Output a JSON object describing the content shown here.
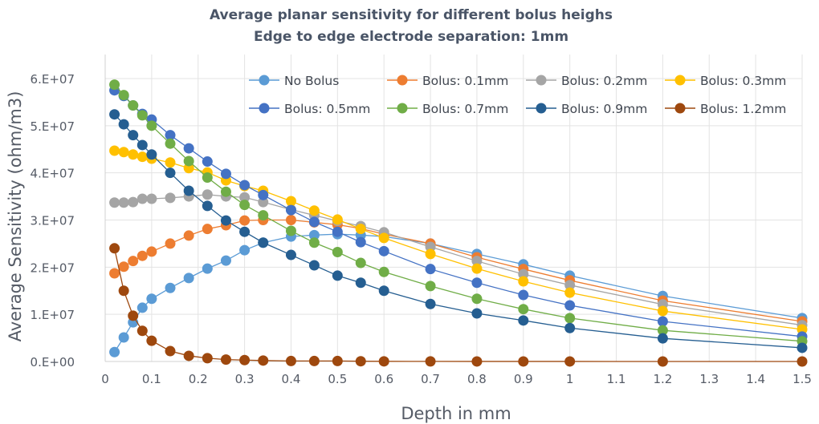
{
  "chart_data": {
    "type": "line",
    "title": "Average planar sensitivity for different bolus heighs",
    "subtitle": "Edge to edge electrode separation: 1mm",
    "xlabel": "Depth in mm",
    "ylabel": "Average Sensitivity (ohm/m3)",
    "xlim": [
      0,
      1.5
    ],
    "ylim": [
      0,
      60000000
    ],
    "grid": true,
    "legend_position": "top-right",
    "x_ticks": [
      0,
      0.1,
      0.2,
      0.3,
      0.4,
      0.5,
      0.6,
      0.7,
      0.8,
      0.9,
      1,
      1.1,
      1.2,
      1.3,
      1.4,
      1.5
    ],
    "x_tick_labels": [
      "0",
      "0.1",
      "0.2",
      "0.3",
      "0.4",
      "0.5",
      "0.6",
      "0.7",
      "0.8",
      "0.9",
      "1",
      "1.1",
      "1.2",
      "1.3",
      "1.4",
      "1.5"
    ],
    "y_ticks": [
      0,
      10000000,
      20000000,
      30000000,
      40000000,
      50000000,
      60000000
    ],
    "y_tick_labels": [
      "0.E+00",
      "1.E+07",
      "2.E+07",
      "3.E+07",
      "4.E+07",
      "5.E+07",
      "6.E+07"
    ],
    "x": [
      0.02,
      0.04,
      0.06,
      0.08,
      0.1,
      0.14,
      0.18,
      0.22,
      0.26,
      0.3,
      0.34,
      0.4,
      0.45,
      0.5,
      0.55,
      0.6,
      0.7,
      0.8,
      0.9,
      1,
      1.2,
      1.5
    ],
    "y_scale": 10000000,
    "series": [
      {
        "name": "No Bolus",
        "color": "#5B9BD5",
        "values": [
          0.2,
          0.51,
          0.83,
          1.14,
          1.33,
          1.56,
          1.77,
          1.97,
          2.14,
          2.36,
          2.52,
          2.65,
          2.68,
          2.7,
          2.68,
          2.65,
          2.5,
          2.28,
          2.06,
          1.82,
          1.39,
          0.92
        ]
      },
      {
        "name": "Bolus: 0.1mm",
        "color": "#ED7D31",
        "values": [
          1.87,
          2.01,
          2.13,
          2.24,
          2.33,
          2.5,
          2.67,
          2.81,
          2.89,
          2.99,
          3.0,
          3.0,
          2.95,
          2.9,
          2.82,
          2.7,
          2.5,
          2.21,
          1.96,
          1.72,
          1.29,
          0.85
        ]
      },
      {
        "name": "Bolus: 0.2mm",
        "color": "#A5A5A5",
        "values": [
          3.37,
          3.37,
          3.38,
          3.45,
          3.45,
          3.47,
          3.5,
          3.54,
          3.5,
          3.48,
          3.38,
          3.22,
          3.1,
          2.98,
          2.87,
          2.74,
          2.43,
          2.13,
          1.85,
          1.62,
          1.21,
          0.77
        ]
      },
      {
        "name": "Bolus: 0.3mm",
        "color": "#FFC000",
        "values": [
          4.47,
          4.44,
          4.39,
          4.34,
          4.3,
          4.22,
          4.1,
          4.01,
          3.84,
          3.72,
          3.62,
          3.4,
          3.2,
          3.01,
          2.81,
          2.62,
          2.28,
          1.97,
          1.7,
          1.46,
          1.07,
          0.68
        ]
      },
      {
        "name": "Bolus: 0.5mm",
        "color": "#4472C4",
        "values": [
          5.75,
          5.63,
          5.43,
          5.25,
          5.13,
          4.8,
          4.52,
          4.24,
          3.98,
          3.74,
          3.53,
          3.21,
          2.96,
          2.75,
          2.53,
          2.34,
          1.96,
          1.67,
          1.41,
          1.19,
          0.85,
          0.53
        ]
      },
      {
        "name": "Bolus: 0.7mm",
        "color": "#70AD47",
        "values": [
          5.87,
          5.65,
          5.43,
          5.22,
          5.0,
          4.62,
          4.25,
          3.9,
          3.6,
          3.32,
          3.1,
          2.77,
          2.52,
          2.32,
          2.09,
          1.9,
          1.6,
          1.33,
          1.11,
          0.92,
          0.66,
          0.43
        ]
      },
      {
        "name": "Bolus: 0.9mm",
        "color": "#255E91",
        "values": [
          5.24,
          5.03,
          4.8,
          4.59,
          4.39,
          4.0,
          3.62,
          3.3,
          2.99,
          2.75,
          2.52,
          2.26,
          2.04,
          1.82,
          1.67,
          1.5,
          1.22,
          1.02,
          0.87,
          0.71,
          0.49,
          0.29
        ]
      },
      {
        "name": "Bolus: 1.2mm",
        "color": "#9E480E",
        "values": [
          2.4,
          1.5,
          0.97,
          0.65,
          0.44,
          0.22,
          0.12,
          0.07,
          0.04,
          0.03,
          0.02,
          0.01,
          0.01,
          0.01,
          0.005,
          0.003,
          0.002,
          0.001,
          0.001,
          0.001,
          0,
          0
        ]
      }
    ]
  }
}
